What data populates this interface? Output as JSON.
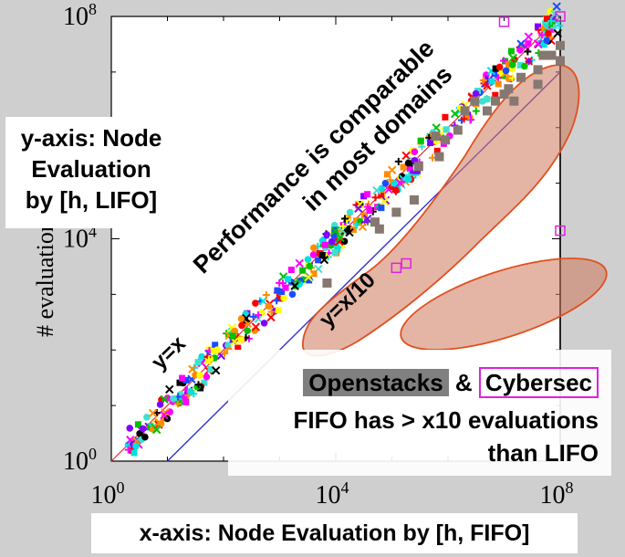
{
  "chart_data": {
    "type": "scatter",
    "scale": "log-log",
    "xlim": [
      1,
      100000000
    ],
    "ylim": [
      1,
      100000000
    ],
    "x_ticks": [
      {
        "base": "10",
        "exp": "0"
      },
      {
        "base": "10",
        "exp": "4"
      },
      {
        "base": "10",
        "exp": "8"
      }
    ],
    "y_ticks": [
      {
        "base": "10",
        "exp": "0"
      },
      {
        "base": "10",
        "exp": "4"
      },
      {
        "base": "10",
        "exp": "8"
      }
    ],
    "ylabel": "# evaluations",
    "reference_lines": [
      {
        "label": "y=x",
        "slope": 1
      },
      {
        "label": "y=x/10",
        "slope": 0.1
      }
    ],
    "annotations": {
      "diagonal_text_1": "Performance is comparable",
      "diagonal_text_2": "in most domains"
    },
    "openstacks_points": [
      [
        7000,
        1600
      ],
      [
        60000,
        15000
      ],
      [
        50000,
        20000
      ],
      [
        120000,
        30000
      ],
      [
        250000,
        50000
      ],
      [
        300000,
        200000
      ],
      [
        700000,
        300000
      ],
      [
        900000,
        600000
      ],
      [
        600000,
        700000
      ],
      [
        1500000,
        900000
      ],
      [
        2000000,
        2000000
      ],
      [
        5000000,
        2000000
      ],
      [
        3000000,
        3000000
      ],
      [
        7000000,
        3000000
      ],
      [
        10000000,
        4000000
      ],
      [
        12000000,
        5000000
      ],
      [
        15000000,
        3000000
      ],
      [
        20000000,
        8000000
      ],
      [
        40000000,
        6000000
      ],
      [
        40000000,
        11000000
      ],
      [
        50000000,
        20000000
      ],
      [
        70000000,
        20000000
      ],
      [
        100000000,
        16000000
      ],
      [
        100000000,
        30000000
      ]
    ],
    "cybersec_points": [
      [
        120000,
        3000
      ],
      [
        180000,
        3600
      ],
      [
        100000000,
        14000
      ],
      [
        10000000,
        80000000
      ],
      [
        100000000,
        100000000
      ]
    ],
    "background_series_colors": [
      "#ff0000",
      "#ff8c00",
      "#ffff00",
      "#00c000",
      "#00e0e0",
      "#1a4cff",
      "#8000ff",
      "#ff00ff",
      "#000000",
      "#40e0d0"
    ]
  },
  "labels": {
    "ylabel_box": [
      "y-axis: Node",
      "Evaluation",
      "by [h, LIFO]"
    ],
    "xlabel_box": "x-axis: Node Evaluation by [h, FIFO]",
    "openstacks": "Openstacks",
    "amp": "&",
    "cybersec": "Cybersec",
    "note_line2": "FIFO has > x10 evaluations",
    "note_line3": "than LIFO"
  }
}
